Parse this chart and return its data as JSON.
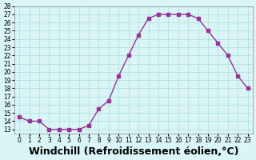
{
  "x": [
    0,
    1,
    2,
    3,
    4,
    5,
    6,
    7,
    8,
    9,
    10,
    11,
    12,
    13,
    14,
    15,
    16,
    17,
    18,
    19,
    20,
    21,
    22,
    23
  ],
  "y": [
    14.5,
    14.0,
    14.0,
    13.0,
    13.0,
    13.0,
    13.0,
    13.5,
    15.5,
    16.5,
    19.5,
    22.0,
    24.5,
    26.5,
    27.0,
    27.0,
    27.0,
    27.0,
    26.5,
    25.0,
    23.5,
    22.0,
    19.5,
    18.0
  ],
  "line_color": "#993399",
  "marker": "s",
  "marker_size": 3,
  "bg_color": "#d9f5f5",
  "grid_color": "#aadddd",
  "xlabel": "Windchill (Refroidissement éolien,°C)",
  "xlabel_fontsize": 9,
  "xlim": [
    -0.5,
    23.5
  ],
  "ylim": [
    12.5,
    28
  ],
  "ytick_min": 13,
  "ytick_max": 27,
  "xtick_labels": [
    "0",
    "1",
    "2",
    "3",
    "4",
    "5",
    "6",
    "7",
    "8",
    "9",
    "10",
    "11",
    "12",
    "13",
    "14",
    "15",
    "16",
    "17",
    "18",
    "19",
    "20",
    "21",
    "22",
    "23"
  ],
  "title": ""
}
